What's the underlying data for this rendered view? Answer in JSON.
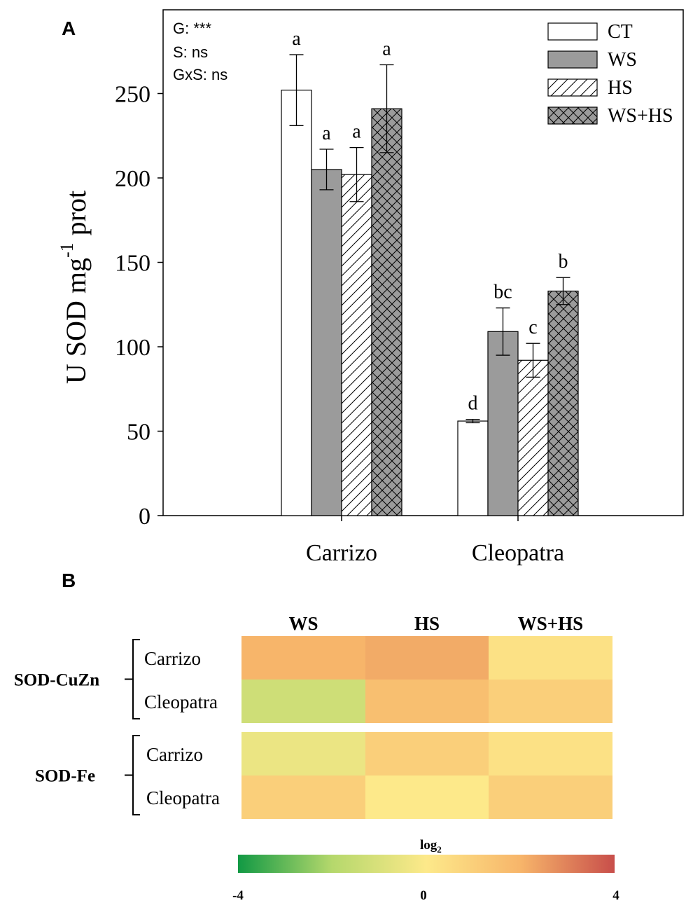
{
  "panel_a_label": "A",
  "panel_b_label": "B",
  "stats_annotations": [
    "G: ***",
    "S: ns",
    "GxS: ns"
  ],
  "chart_data": [
    {
      "type": "bar",
      "ylabel_main": "U SOD mg",
      "ylabel_superscript": "-1",
      "ylabel_tail": "prot",
      "ylim": [
        0,
        290
      ],
      "yticks": [
        0,
        50,
        100,
        150,
        200,
        250
      ],
      "categories": [
        "Carrizo",
        "Cleopatra"
      ],
      "legend_position": "top-right",
      "series": [
        {
          "name": "CT",
          "pattern": "white",
          "values": [
            252,
            56
          ],
          "errors": [
            21,
            1
          ],
          "letters": [
            "a",
            "d"
          ]
        },
        {
          "name": "WS",
          "pattern": "gray",
          "values": [
            205,
            109
          ],
          "errors": [
            12,
            14
          ],
          "letters": [
            "a",
            "bc"
          ]
        },
        {
          "name": "HS",
          "pattern": "diagonal",
          "values": [
            202,
            92
          ],
          "errors": [
            16,
            10
          ],
          "letters": [
            "a",
            "c"
          ]
        },
        {
          "name": "WS+HS",
          "pattern": "crosshatch",
          "values": [
            241,
            133
          ],
          "errors": [
            26,
            8
          ],
          "letters": [
            "a",
            "b"
          ]
        }
      ]
    },
    {
      "type": "heatmap",
      "columns": [
        "WS",
        "HS",
        "WS+HS"
      ],
      "groups": [
        {
          "name": "SOD-CuZn",
          "rows": [
            {
              "label": "Carrizo",
              "values": [
                2.0,
                2.2,
                0.3
              ]
            },
            {
              "label": "Cleopatra",
              "values": [
                -1.3,
                1.6,
                1.0
              ]
            }
          ]
        },
        {
          "name": "SOD-Fe",
          "rows": [
            {
              "label": "Carrizo",
              "values": [
                -0.5,
                1.0,
                0.3
              ]
            },
            {
              "label": "Cleopatra",
              "values": [
                1.0,
                0.0,
                1.0
              ]
            }
          ]
        }
      ],
      "colorbar": {
        "title": "log",
        "title_subscript": "2",
        "min": -4,
        "mid": 0,
        "max": 4,
        "tick_labels": [
          "-4",
          "0",
          "4"
        ]
      },
      "colors": {
        "low": "#119944",
        "lowmid": "#b5d86c",
        "mid": "#fde98a",
        "highmid": "#f7b56a",
        "high": "#c84e4a"
      }
    }
  ]
}
